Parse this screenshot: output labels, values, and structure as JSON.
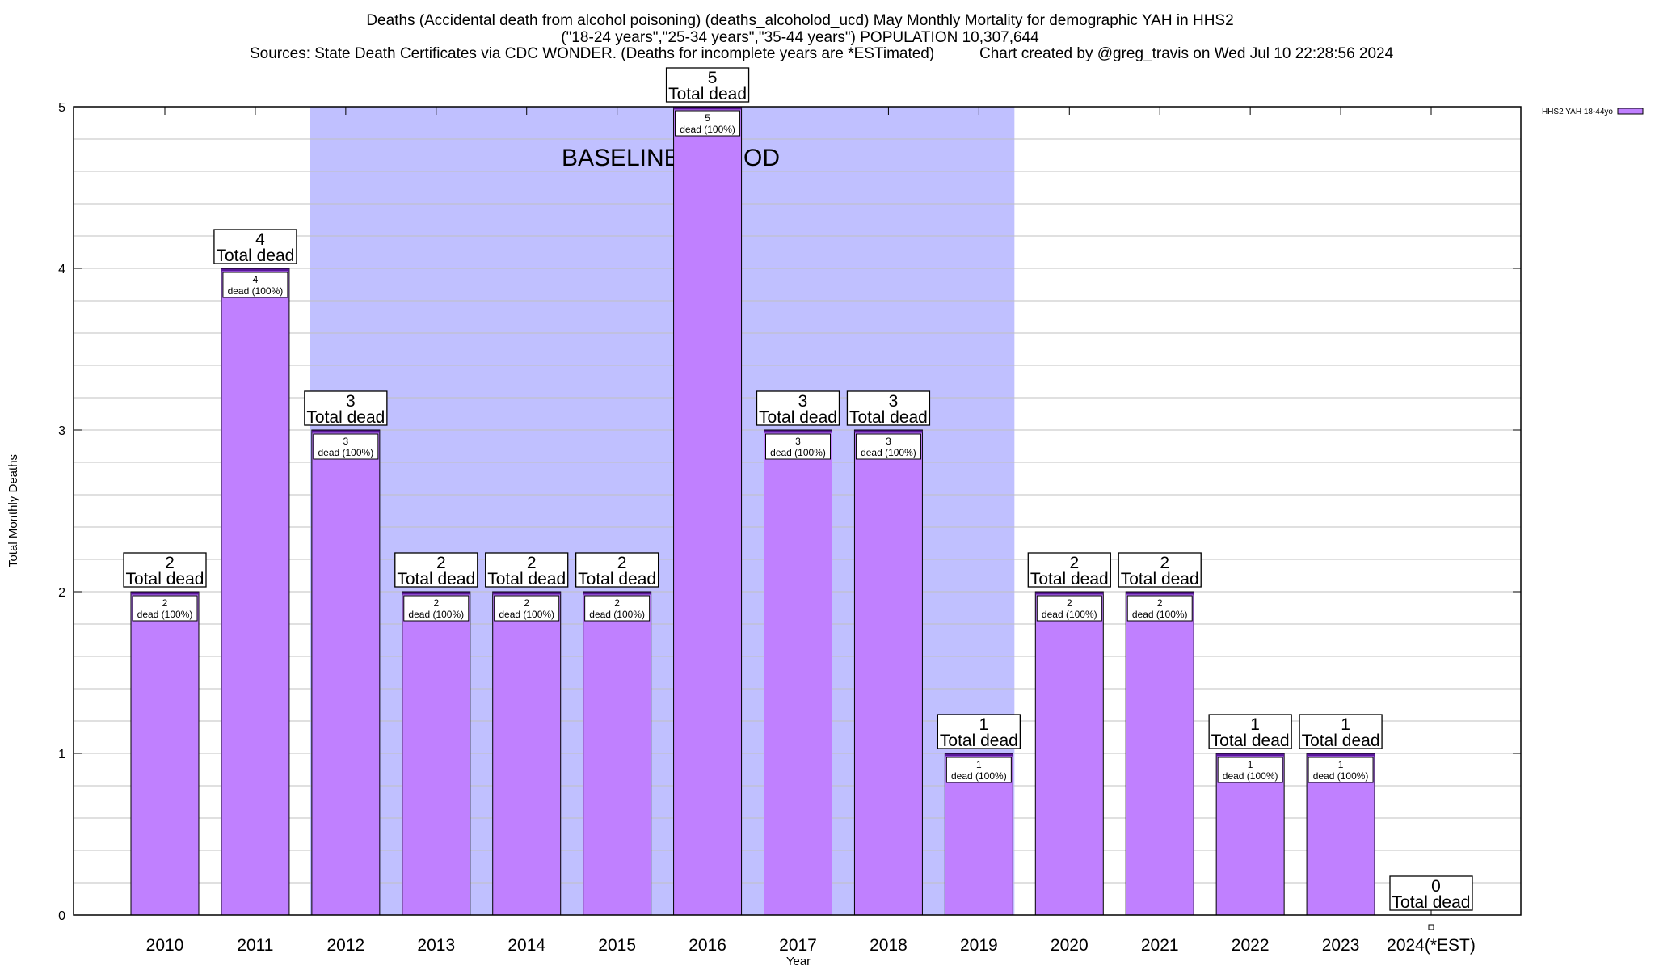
{
  "chart_data": {
    "type": "bar",
    "title_lines": [
      "Deaths (Accidental death from alcohol poisoning) (deaths_alcoholod_ucd) May Monthly Mortality for demographic YAH in HHS2",
      "(\"18-24 years\",\"25-34 years\",\"35-44 years\") POPULATION 10,307,644"
    ],
    "sources": "Sources: State Death Certificates via CDC WONDER. (Deaths for incomplete years are *ESTimated)",
    "credit": "Chart created by @greg_travis on Wed Jul 10 22:28:56 2024",
    "xlabel": "Year",
    "ylabel": "Total Monthly Deaths",
    "ylim": [
      0,
      5
    ],
    "yticks": [
      0,
      1,
      2,
      3,
      4,
      5
    ],
    "grid": true,
    "legend": {
      "position": "top-right",
      "label": "HHS2 YAH 18-44yo"
    },
    "categories": [
      "2010",
      "2011",
      "2012",
      "2013",
      "2014",
      "2015",
      "2016",
      "2017",
      "2018",
      "2019",
      "2020",
      "2021",
      "2022",
      "2023",
      "2024(*EST)"
    ],
    "series": [
      {
        "name": "HHS2 YAH 18-44yo",
        "values": [
          2,
          4,
          3,
          2,
          2,
          2,
          5,
          3,
          3,
          1,
          2,
          2,
          1,
          1,
          0
        ]
      }
    ],
    "total_label": "Total dead",
    "inner_label_suffix": "dead (100%)",
    "baseline": {
      "label": "BASELINE PERIOD",
      "from": "2012",
      "to": "2019"
    },
    "colors": {
      "bar": "#c080ff",
      "bar_edge": "#5a189a",
      "baseline": "#c0c0ff",
      "grid": "#c0c0c0"
    }
  }
}
